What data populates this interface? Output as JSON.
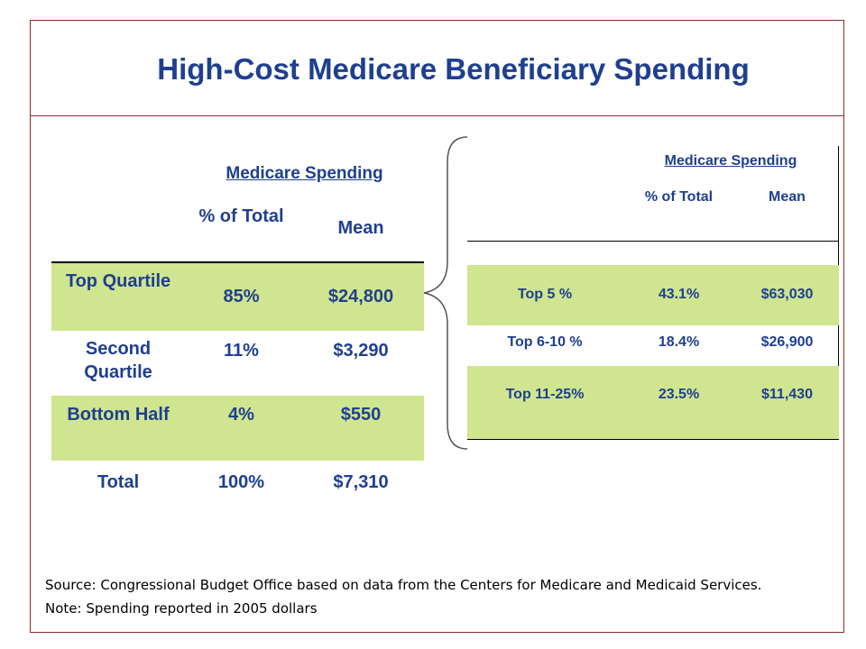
{
  "title": "High-Cost Medicare Beneficiary Spending",
  "left_table": {
    "group_header": "Medicare Spending",
    "col_pct": "% of Total",
    "col_mean": "Mean",
    "rows": [
      {
        "label": "Top Quartile",
        "pct": "85%",
        "mean": "$24,800"
      },
      {
        "label": "Second Quartile",
        "pct": "11%",
        "mean": "$3,290"
      },
      {
        "label": "Bottom Half",
        "pct": "4%",
        "mean": "$550"
      },
      {
        "label": "Total",
        "pct": "100%",
        "mean": "$7,310"
      }
    ]
  },
  "right_table": {
    "group_header": "Medicare Spending",
    "col_pct": "% of Total",
    "col_mean": "Mean",
    "rows": [
      {
        "label": "Top 5 %",
        "pct": "43.1%",
        "mean": "$63,030"
      },
      {
        "label": "Top 6-10 %",
        "pct": "18.4%",
        "mean": "$26,900"
      },
      {
        "label": "Top 11-25%",
        "pct": "23.5%",
        "mean": "$11,430"
      }
    ]
  },
  "source": "Source: Congressional Budget Office based on data from the Centers for Medicare and Medicaid Services.",
  "note": "Note: Spending reported in 2005 dollars",
  "colors": {
    "text": "#1f3f8f",
    "highlight": "#cfe58f",
    "frame": "#8b2a2a"
  }
}
